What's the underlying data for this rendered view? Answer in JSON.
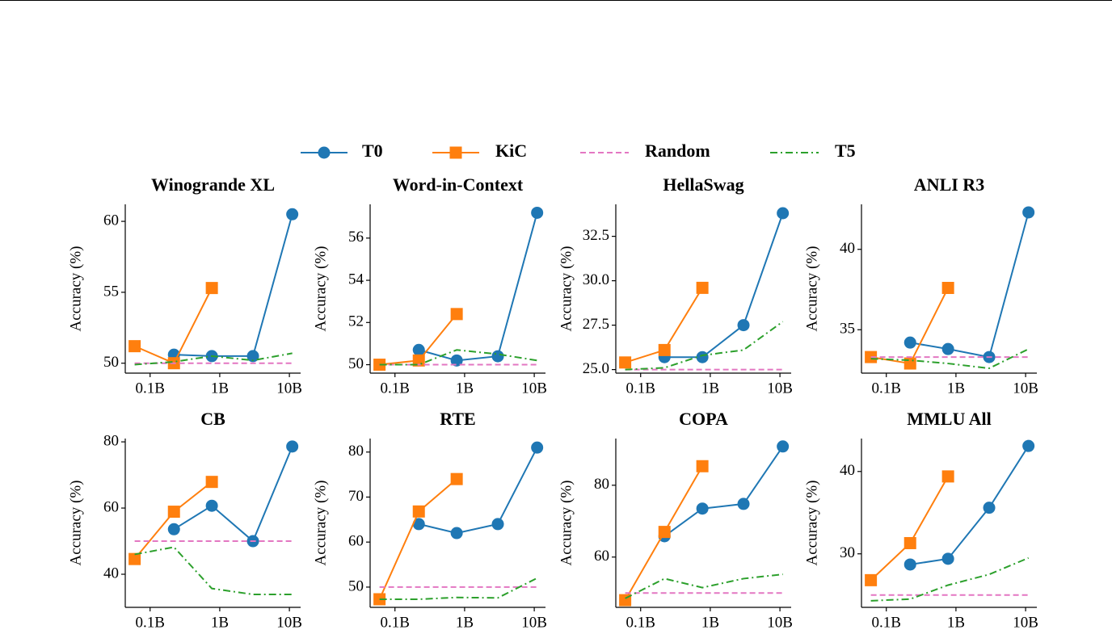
{
  "chart_data": [
    {
      "type": "line",
      "title": "Winogrande XL",
      "ylabel": "Accuracy (%)",
      "xscale": "log",
      "x": [
        0.06,
        0.22,
        0.77,
        3,
        11
      ],
      "xlim": [
        0.044,
        14.5
      ],
      "xticks": [
        {
          "value": 0.1,
          "label": "0.1B"
        },
        {
          "value": 1,
          "label": "1B"
        },
        {
          "value": 10,
          "label": "10B"
        }
      ],
      "ylim": [
        49.3,
        61.2
      ],
      "yticks": [
        50,
        55,
        60
      ],
      "series": [
        {
          "name": "T0",
          "color": "#1f77b4",
          "marker": "circle",
          "linestyle": "solid",
          "values": [
            null,
            50.6,
            50.5,
            50.5,
            60.5
          ]
        },
        {
          "name": "KiC",
          "color": "#ff7f0e",
          "marker": "square",
          "linestyle": "solid",
          "values": [
            51.2,
            50.0,
            55.3,
            null,
            null
          ]
        },
        {
          "name": "Random",
          "color": "#e377c2",
          "linestyle": "dashed",
          "values": [
            50,
            50,
            50,
            50,
            50
          ]
        },
        {
          "name": "T5",
          "color": "#2ca02c",
          "linestyle": "dashdot",
          "values": [
            49.9,
            50.1,
            50.5,
            50.2,
            50.7
          ]
        }
      ]
    },
    {
      "type": "line",
      "title": "Word-in-Context",
      "ylabel": "Accuracy (%)",
      "xscale": "log",
      "x": [
        0.06,
        0.22,
        0.77,
        3,
        11
      ],
      "xlim": [
        0.044,
        14.5
      ],
      "xticks": [
        {
          "value": 0.1,
          "label": "0.1B"
        },
        {
          "value": 1,
          "label": "1B"
        },
        {
          "value": 10,
          "label": "10B"
        }
      ],
      "ylim": [
        49.6,
        57.6
      ],
      "yticks": [
        50,
        52,
        54,
        56
      ],
      "series": [
        {
          "name": "T0",
          "color": "#1f77b4",
          "marker": "circle",
          "linestyle": "solid",
          "values": [
            null,
            50.7,
            50.2,
            50.4,
            57.2
          ]
        },
        {
          "name": "KiC",
          "color": "#ff7f0e",
          "marker": "square",
          "linestyle": "solid",
          "values": [
            50.0,
            50.2,
            52.4,
            null,
            null
          ]
        },
        {
          "name": "Random",
          "color": "#e377c2",
          "linestyle": "dashed",
          "values": [
            50,
            50,
            50,
            50,
            50
          ]
        },
        {
          "name": "T5",
          "color": "#2ca02c",
          "linestyle": "dashdot",
          "values": [
            50.0,
            50.0,
            50.7,
            50.5,
            50.2
          ]
        }
      ]
    },
    {
      "type": "line",
      "title": "HellaSwag",
      "ylabel": "Accuracy (%)",
      "xscale": "log",
      "x": [
        0.06,
        0.22,
        0.77,
        3,
        11
      ],
      "xlim": [
        0.044,
        14.5
      ],
      "xticks": [
        {
          "value": 0.1,
          "label": "0.1B"
        },
        {
          "value": 1,
          "label": "1B"
        },
        {
          "value": 10,
          "label": "10B"
        }
      ],
      "ylim": [
        24.8,
        34.3
      ],
      "yticks": [
        {
          "value": 25,
          "label": "25.0"
        },
        27.5,
        {
          "value": 30,
          "label": "30.0"
        },
        32.5
      ],
      "series": [
        {
          "name": "T0",
          "color": "#1f77b4",
          "marker": "circle",
          "linestyle": "solid",
          "values": [
            null,
            25.7,
            25.7,
            27.5,
            33.8
          ]
        },
        {
          "name": "KiC",
          "color": "#ff7f0e",
          "marker": "square",
          "linestyle": "solid",
          "values": [
            25.4,
            26.1,
            29.6,
            null,
            null
          ]
        },
        {
          "name": "Random",
          "color": "#e377c2",
          "linestyle": "dashed",
          "values": [
            25,
            25,
            25,
            25,
            25
          ]
        },
        {
          "name": "T5",
          "color": "#2ca02c",
          "linestyle": "dashdot",
          "values": [
            25.0,
            25.1,
            25.8,
            26.1,
            27.7
          ]
        }
      ]
    },
    {
      "type": "line",
      "title": "ANLI R3",
      "ylabel": "Accuracy (%)",
      "xscale": "log",
      "x": [
        0.06,
        0.22,
        0.77,
        3,
        11
      ],
      "xlim": [
        0.044,
        14.5
      ],
      "xticks": [
        {
          "value": 0.1,
          "label": "0.1B"
        },
        {
          "value": 1,
          "label": "1B"
        },
        {
          "value": 10,
          "label": "10B"
        }
      ],
      "ylim": [
        32.3,
        42.8
      ],
      "yticks": [
        35,
        40
      ],
      "series": [
        {
          "name": "T0",
          "color": "#1f77b4",
          "marker": "circle",
          "linestyle": "solid",
          "values": [
            null,
            34.2,
            33.8,
            33.3,
            42.3
          ]
        },
        {
          "name": "KiC",
          "color": "#ff7f0e",
          "marker": "square",
          "linestyle": "solid",
          "values": [
            33.3,
            32.9,
            37.6,
            null,
            null
          ]
        },
        {
          "name": "Random",
          "color": "#e377c2",
          "linestyle": "dashed",
          "values": [
            33.3,
            33.3,
            33.3,
            33.3,
            33.3
          ]
        },
        {
          "name": "T5",
          "color": "#2ca02c",
          "linestyle": "dashdot",
          "values": [
            33.2,
            33.1,
            32.9,
            32.6,
            33.8
          ]
        }
      ]
    },
    {
      "type": "line",
      "title": "CB",
      "ylabel": "Accuracy (%)",
      "xscale": "log",
      "x": [
        0.06,
        0.22,
        0.77,
        3,
        11
      ],
      "xlim": [
        0.044,
        14.5
      ],
      "xticks": [
        {
          "value": 0.1,
          "label": "0.1B"
        },
        {
          "value": 1,
          "label": "1B"
        },
        {
          "value": 10,
          "label": "10B"
        }
      ],
      "ylim": [
        30,
        81
      ],
      "yticks": [
        40,
        60,
        80
      ],
      "series": [
        {
          "name": "T0",
          "color": "#1f77b4",
          "marker": "circle",
          "linestyle": "solid",
          "values": [
            null,
            53.6,
            60.7,
            50.0,
            78.6
          ]
        },
        {
          "name": "KiC",
          "color": "#ff7f0e",
          "marker": "square",
          "linestyle": "solid",
          "values": [
            44.6,
            58.9,
            67.9,
            null,
            null
          ]
        },
        {
          "name": "Random",
          "color": "#e377c2",
          "linestyle": "dashed",
          "values": [
            50,
            50,
            50,
            50,
            50
          ]
        },
        {
          "name": "T5",
          "color": "#2ca02c",
          "linestyle": "dashdot",
          "values": [
            46.0,
            48.2,
            35.7,
            33.9,
            33.9
          ]
        }
      ]
    },
    {
      "type": "line",
      "title": "RTE",
      "ylabel": "Accuracy (%)",
      "xscale": "log",
      "x": [
        0.06,
        0.22,
        0.77,
        3,
        11
      ],
      "xlim": [
        0.044,
        14.5
      ],
      "xticks": [
        {
          "value": 0.1,
          "label": "0.1B"
        },
        {
          "value": 1,
          "label": "1B"
        },
        {
          "value": 10,
          "label": "10B"
        }
      ],
      "ylim": [
        45.5,
        83
      ],
      "yticks": [
        50,
        60,
        70,
        80
      ],
      "series": [
        {
          "name": "T0",
          "color": "#1f77b4",
          "marker": "circle",
          "linestyle": "solid",
          "values": [
            null,
            64.0,
            62.0,
            64.0,
            81.0
          ]
        },
        {
          "name": "KiC",
          "color": "#ff7f0e",
          "marker": "square",
          "linestyle": "solid",
          "values": [
            47.3,
            66.8,
            74.0,
            null,
            null
          ]
        },
        {
          "name": "Random",
          "color": "#e377c2",
          "linestyle": "dashed",
          "values": [
            50,
            50,
            50,
            50,
            50
          ]
        },
        {
          "name": "T5",
          "color": "#2ca02c",
          "linestyle": "dashdot",
          "values": [
            47.3,
            47.3,
            47.7,
            47.6,
            52.0
          ]
        }
      ]
    },
    {
      "type": "line",
      "title": "COPA",
      "ylabel": "Accuracy (%)",
      "xscale": "log",
      "x": [
        0.06,
        0.22,
        0.77,
        3,
        11
      ],
      "xlim": [
        0.044,
        14.5
      ],
      "xticks": [
        {
          "value": 0.1,
          "label": "0.1B"
        },
        {
          "value": 1,
          "label": "1B"
        },
        {
          "value": 10,
          "label": "10B"
        }
      ],
      "ylim": [
        46,
        93
      ],
      "yticks": [
        60,
        80
      ],
      "series": [
        {
          "name": "T0",
          "color": "#1f77b4",
          "marker": "circle",
          "linestyle": "solid",
          "values": [
            null,
            65.8,
            73.5,
            74.8,
            90.8
          ]
        },
        {
          "name": "KiC",
          "color": "#ff7f0e",
          "marker": "square",
          "linestyle": "solid",
          "values": [
            48.0,
            67.0,
            85.3,
            null,
            null
          ]
        },
        {
          "name": "Random",
          "color": "#e377c2",
          "linestyle": "dashed",
          "values": [
            50,
            50,
            50,
            50,
            50
          ]
        },
        {
          "name": "T5",
          "color": "#2ca02c",
          "linestyle": "dashdot",
          "values": [
            48.5,
            54.0,
            51.5,
            54.0,
            55.2
          ]
        }
      ]
    },
    {
      "type": "line",
      "title": "MMLU All",
      "ylabel": "Accuracy (%)",
      "xscale": "log",
      "x": [
        0.06,
        0.22,
        0.77,
        3,
        11
      ],
      "xlim": [
        0.044,
        14.5
      ],
      "xticks": [
        {
          "value": 0.1,
          "label": "0.1B"
        },
        {
          "value": 1,
          "label": "1B"
        },
        {
          "value": 10,
          "label": "10B"
        }
      ],
      "ylim": [
        23.5,
        44
      ],
      "yticks": [
        30,
        40
      ],
      "series": [
        {
          "name": "T0",
          "color": "#1f77b4",
          "marker": "circle",
          "linestyle": "solid",
          "values": [
            null,
            28.7,
            29.4,
            35.6,
            43.1
          ]
        },
        {
          "name": "KiC",
          "color": "#ff7f0e",
          "marker": "square",
          "linestyle": "solid",
          "values": [
            26.8,
            31.3,
            39.4,
            null,
            null
          ]
        },
        {
          "name": "Random",
          "color": "#e377c2",
          "linestyle": "dashed",
          "values": [
            25,
            25,
            25,
            25,
            25
          ]
        },
        {
          "name": "T5",
          "color": "#2ca02c",
          "linestyle": "dashdot",
          "values": [
            24.3,
            24.5,
            26.2,
            27.5,
            29.5
          ]
        }
      ]
    }
  ]
}
